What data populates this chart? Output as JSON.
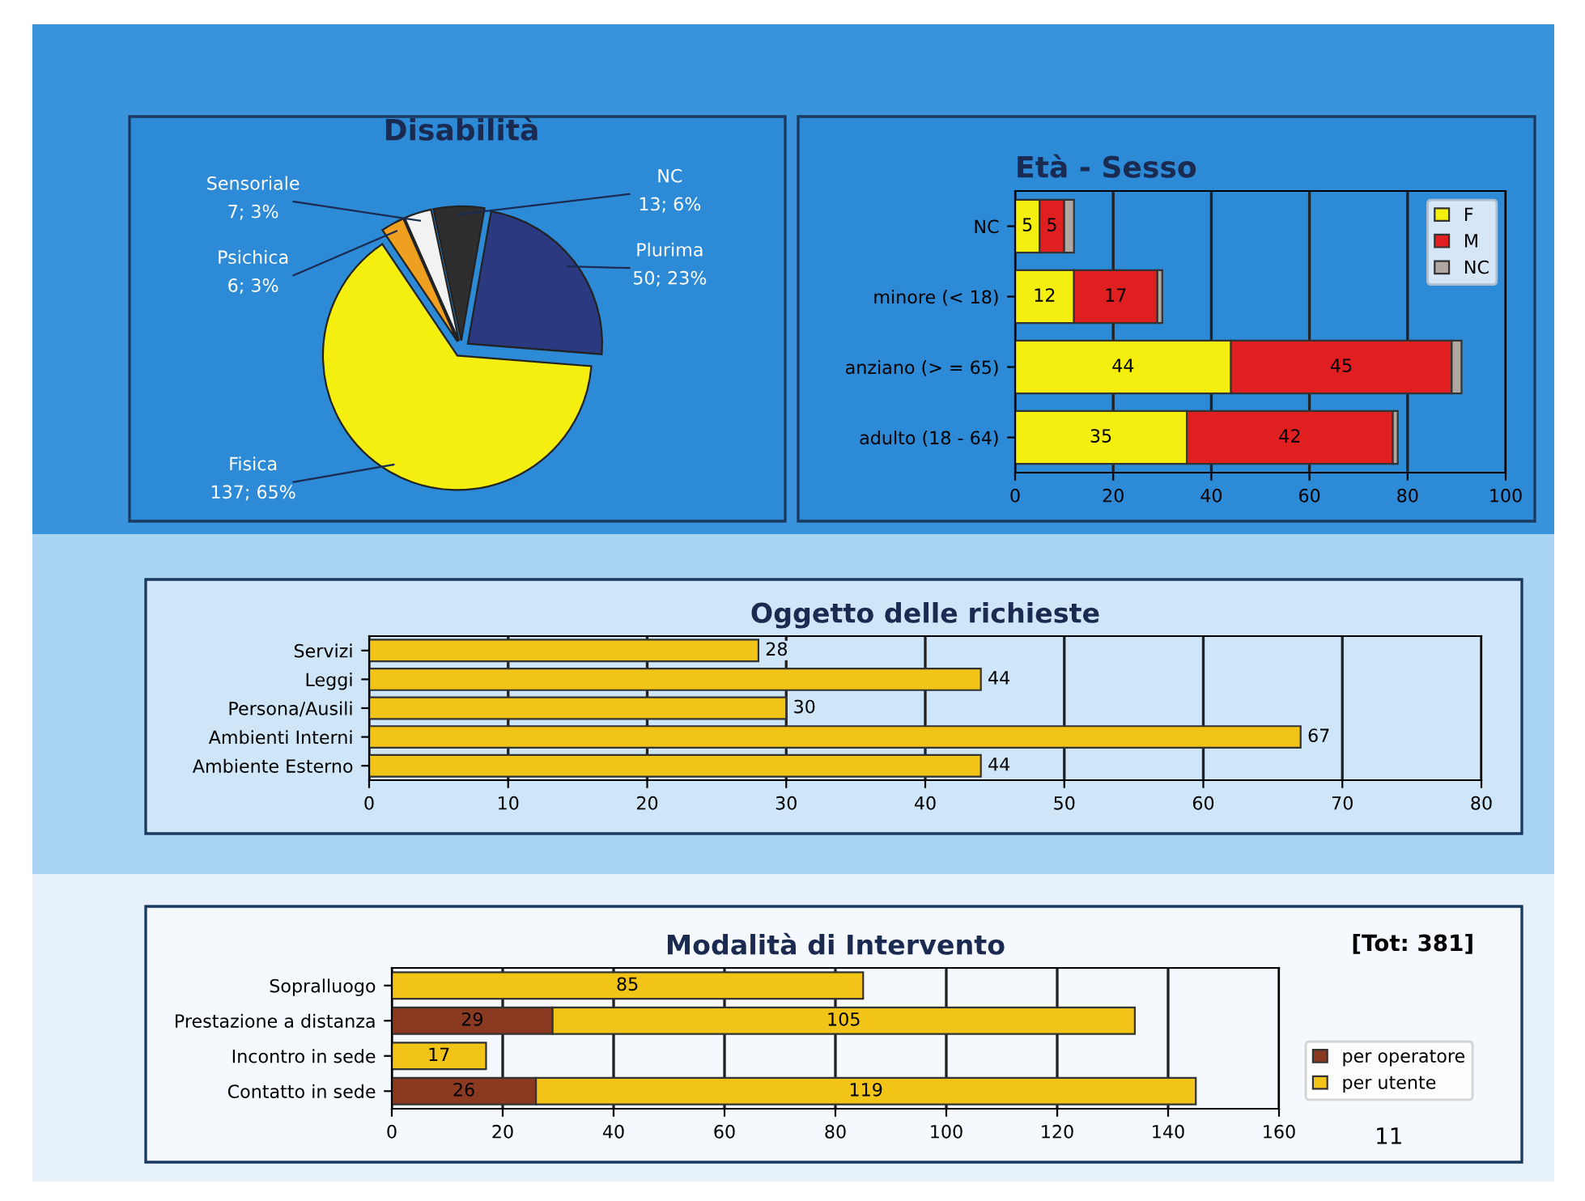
{
  "chart_data": [
    {
      "type": "pie",
      "title": "Disabilità",
      "categories": [
        "Plurima",
        "Fisica",
        "Psichica",
        "Sensoriale",
        "NC"
      ],
      "values": [
        50,
        137,
        6,
        7,
        13
      ],
      "colors": [
        "#2b3a80",
        "#f5ef10",
        "#f0a020",
        "#f2f2f2",
        "#2e2e2e"
      ],
      "value_labels": [
        "50; 23%",
        "137; 65%",
        "6; 3%",
        "7; 3%",
        "13; 6%"
      ]
    },
    {
      "type": "bar",
      "title": "Età - Sesso",
      "orientation": "horizontal",
      "stacked": true,
      "categories": [
        "NC",
        "minore (< 18)",
        "anziano (> = 65)",
        "adulto (18 - 64)"
      ],
      "series": [
        {
          "name": "F",
          "color": "#f5ef10",
          "values": [
            5,
            12,
            44,
            35
          ],
          "value_labels": [
            "5",
            "12",
            "44",
            "35"
          ]
        },
        {
          "name": "M",
          "color": "#e02020",
          "values": [
            5,
            17,
            45,
            42
          ],
          "value_labels": [
            "5",
            "17",
            "45",
            "42"
          ]
        },
        {
          "name": "NC",
          "color": "#b0a8a0",
          "values": [
            2,
            1,
            2,
            1
          ]
        }
      ],
      "xlim": [
        0,
        100
      ],
      "xticks": [
        0,
        20,
        40,
        60,
        80,
        100
      ],
      "grid": "x",
      "legend": "top right"
    },
    {
      "type": "bar",
      "title": "Oggetto delle richieste",
      "orientation": "horizontal",
      "categories": [
        "Servizi",
        "Leggi",
        "Persona/Ausili",
        "Ambienti Interni",
        "Ambiente Esterno"
      ],
      "values": [
        28,
        44,
        30,
        67,
        44
      ],
      "color": "#f2c418",
      "data_labels": true,
      "xlim": [
        0,
        80
      ],
      "xticks": [
        0,
        10,
        20,
        30,
        40,
        50,
        60,
        70,
        80
      ],
      "grid": "x"
    },
    {
      "type": "bar",
      "title": "Modalità di Intervento",
      "orientation": "horizontal",
      "stacked": true,
      "categories": [
        "Sopralluogo",
        "Prestazione a distanza",
        "Incontro in sede",
        "Contatto in sede"
      ],
      "series": [
        {
          "name": "per operatore",
          "color": "#8b3a22",
          "values": [
            null,
            29,
            null,
            26
          ]
        },
        {
          "name": "per utente",
          "color": "#f2c418",
          "values": [
            85,
            105,
            17,
            119
          ]
        }
      ],
      "data_labels": true,
      "xlim": [
        0,
        160
      ],
      "xticks": [
        0,
        20,
        40,
        60,
        80,
        100,
        120,
        140,
        160
      ],
      "grid": "x",
      "legend": "right",
      "annotations": [
        "[Tot: 381]",
        "11"
      ]
    }
  ]
}
